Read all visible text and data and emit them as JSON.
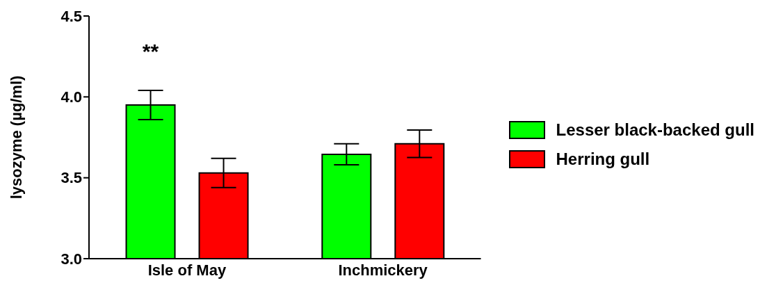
{
  "chart_data": {
    "type": "bar",
    "ylabel": "lysozyme (µg/ml)",
    "categories": [
      "Isle of May",
      "Inchmickery"
    ],
    "series": [
      {
        "name": "Lesser black-backed gull",
        "color": "#00ff00",
        "values": [
          3.95,
          3.645
        ],
        "errors": [
          0.09,
          0.065
        ]
      },
      {
        "name": "Herring gull",
        "color": "#ff0000",
        "values": [
          3.53,
          3.71
        ],
        "errors": [
          0.09,
          0.085
        ]
      }
    ],
    "ylim": [
      3.0,
      4.5
    ],
    "yticks": [
      {
        "value": 3.0,
        "label": "3.0"
      },
      {
        "value": 3.5,
        "label": "3.5"
      },
      {
        "value": 4.0,
        "label": "4.0"
      },
      {
        "value": 4.5,
        "label": "4.5"
      }
    ],
    "annotations": [
      "**"
    ],
    "legend": "right",
    "grid": false
  }
}
